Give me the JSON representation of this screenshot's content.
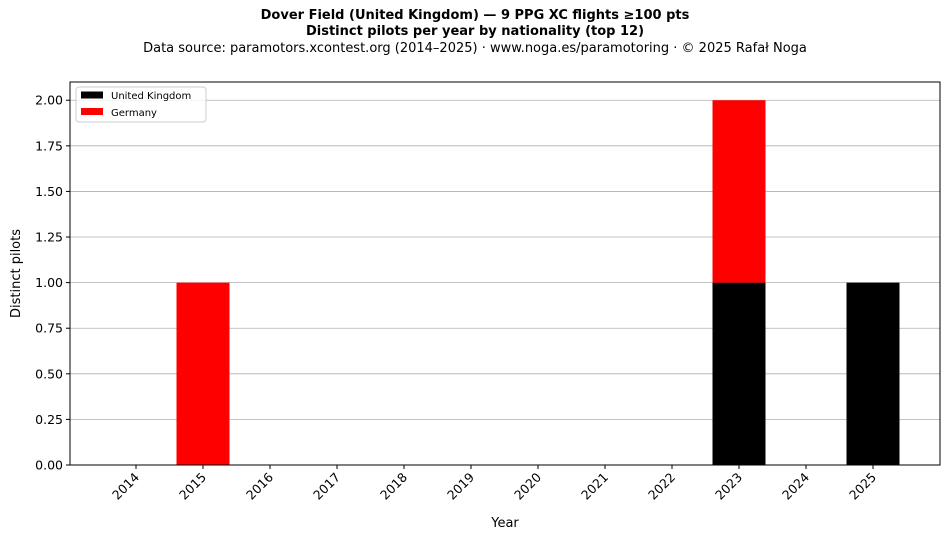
{
  "chart_data": {
    "type": "bar",
    "stacked": true,
    "title": "Dover Field (United Kingdom)  —  9 PPG XC flights ≥100 pts",
    "subtitle": "Distinct pilots per year by nationality (top 12)",
    "source": "Data source: paramotors.xcontest.org (2014–2025)  ·  www.noga.es/paramotoring  ·  © 2025 Rafał Noga",
    "xlabel": "Year",
    "ylabel": "Distinct pilots",
    "categories": [
      "2014",
      "2015",
      "2016",
      "2017",
      "2018",
      "2019",
      "2020",
      "2021",
      "2022",
      "2023",
      "2024",
      "2025"
    ],
    "series": [
      {
        "name": "United Kingdom",
        "color": "#000000",
        "values": [
          0,
          0,
          0,
          0,
          0,
          0,
          0,
          0,
          0,
          1,
          0,
          1
        ]
      },
      {
        "name": "Germany",
        "color": "#ff0000",
        "values": [
          0,
          1,
          0,
          0,
          0,
          0,
          0,
          0,
          0,
          1,
          0,
          0
        ]
      }
    ],
    "ylim": [
      0,
      2.1
    ],
    "yticks": [
      "0.00",
      "0.25",
      "0.50",
      "0.75",
      "1.00",
      "1.25",
      "1.50",
      "1.75",
      "2.00"
    ],
    "grid": "y",
    "legend_position": "top-left"
  }
}
